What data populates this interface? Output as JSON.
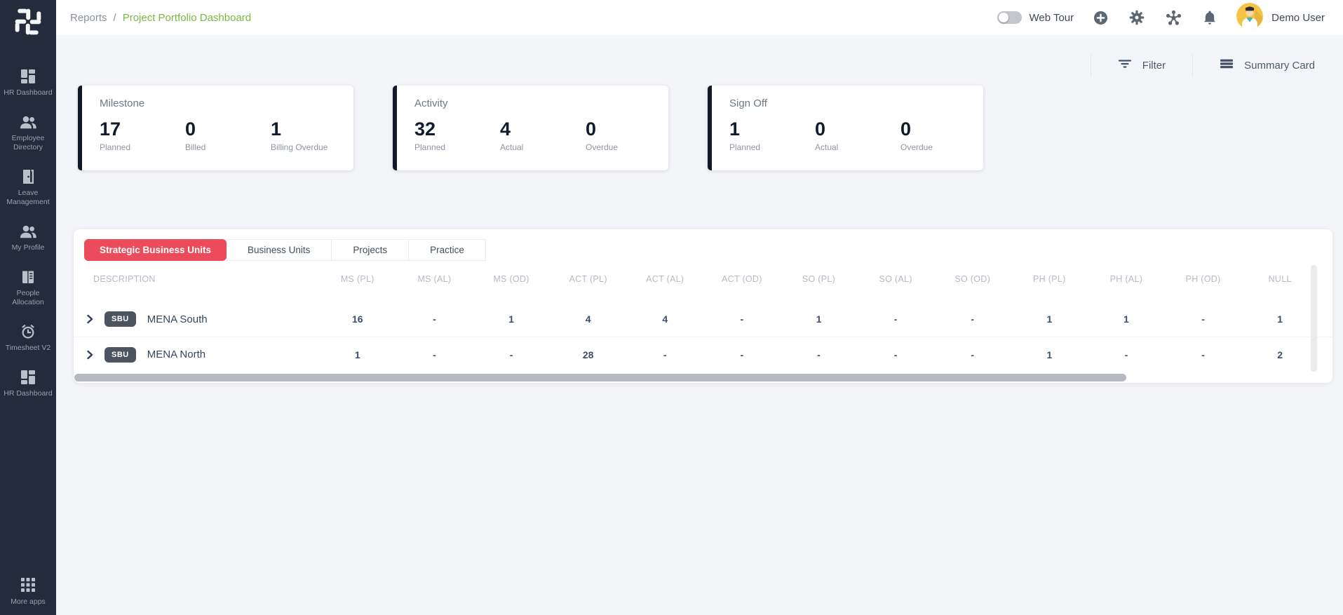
{
  "breadcrumb": {
    "section": "Reports",
    "separator": "/",
    "current": "Project Portfolio Dashboard"
  },
  "topbar": {
    "web_tour_label": "Web Tour",
    "user_name": "Demo User",
    "icons": [
      "add",
      "settings",
      "apps",
      "notifications"
    ]
  },
  "sidebar": {
    "items": [
      {
        "label": "HR Dashboard",
        "icon": "dashboard-icon"
      },
      {
        "label": "Employee Directory",
        "icon": "people-icon"
      },
      {
        "label": "Leave Management",
        "icon": "door-icon"
      },
      {
        "label": "My Profile",
        "icon": "people-icon"
      },
      {
        "label": "People Allocation",
        "icon": "book-icon"
      },
      {
        "label": "Timesheet V2",
        "icon": "alarm-clock-icon"
      },
      {
        "label": "HR Dashboard",
        "icon": "dashboard-icon"
      }
    ],
    "more_apps_label": "More apps"
  },
  "toolbar": {
    "filter_label": "Filter",
    "summary_card_label": "Summary Card"
  },
  "summary_cards": [
    {
      "title": "Milestone",
      "stats": [
        {
          "value": "17",
          "label": "Planned"
        },
        {
          "value": "0",
          "label": "Billed"
        },
        {
          "value": "1",
          "label": "Billing Overdue"
        }
      ]
    },
    {
      "title": "Activity",
      "stats": [
        {
          "value": "32",
          "label": "Planned"
        },
        {
          "value": "4",
          "label": "Actual"
        },
        {
          "value": "0",
          "label": "Overdue"
        }
      ]
    },
    {
      "title": "Sign Off",
      "stats": [
        {
          "value": "1",
          "label": "Planned"
        },
        {
          "value": "0",
          "label": "Actual"
        },
        {
          "value": "0",
          "label": "Overdue"
        }
      ]
    }
  ],
  "tabs": [
    {
      "label": "Strategic Business Units",
      "active": true
    },
    {
      "label": "Business Units",
      "active": false
    },
    {
      "label": "Projects",
      "active": false
    },
    {
      "label": "Practice",
      "active": false
    }
  ],
  "table": {
    "columns": [
      "DESCRIPTION",
      "MS (PL)",
      "MS (AL)",
      "MS (OD)",
      "ACT (PL)",
      "ACT (AL)",
      "ACT (OD)",
      "SO (PL)",
      "SO (AL)",
      "SO (OD)",
      "PH (PL)",
      "PH (AL)",
      "PH (OD)",
      "NULL"
    ],
    "rows": [
      {
        "badge": "SBU",
        "name": "MENA South",
        "values": [
          "16",
          "-",
          "1",
          "4",
          "4",
          "-",
          "1",
          "-",
          "-",
          "1",
          "1",
          "-",
          "1"
        ]
      },
      {
        "badge": "SBU",
        "name": "MENA North",
        "values": [
          "1",
          "-",
          "-",
          "28",
          "-",
          "-",
          "-",
          "-",
          "-",
          "1",
          "-",
          "-",
          "2"
        ]
      }
    ]
  },
  "colors": {
    "sidebar_bg": "#242c3c",
    "accent_red": "#ec4b5c",
    "breadcrumb_active_green": "#7bb843",
    "badge_bg": "#4c545f",
    "card_accent": "#101a29",
    "avatar_bg": "#f6c445"
  }
}
